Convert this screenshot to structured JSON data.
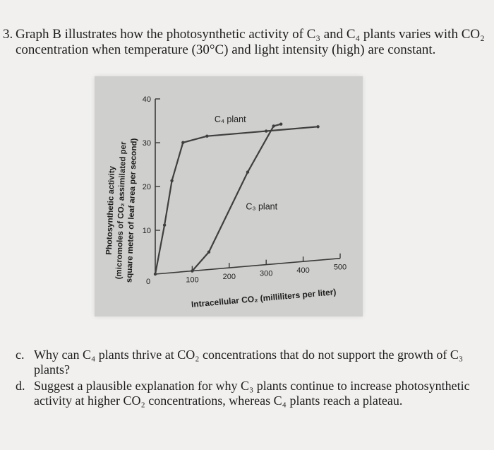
{
  "question": {
    "number": "3.",
    "line1": "Graph B illustrates how the photosynthetic activity of C₃ and C₄ plants varies with CO₂",
    "line2": "concentration when temperature (30°C) and light intensity (high) are constant."
  },
  "chart_data": {
    "type": "line",
    "ylabel_lines": [
      "Photosynthetic activity",
      "(micromoles of CO₂ assimilated per",
      "square meter of leaf area per second)"
    ],
    "xlabel": "Intracellular CO₂ (milliliters per liter)",
    "x_ticks": [
      100,
      200,
      300,
      400,
      500
    ],
    "y_ticks": [
      10,
      20,
      30,
      40
    ],
    "origin_label": "0",
    "xlim": [
      0,
      500
    ],
    "ylim": [
      0,
      40
    ],
    "grid": false,
    "series": [
      {
        "name": "C₄ plant",
        "color": "#3f3f3f",
        "points": [
          [
            0,
            0
          ],
          [
            25,
            11
          ],
          [
            45,
            21
          ],
          [
            75,
            29.5
          ],
          [
            140,
            30.5
          ],
          [
            300,
            30.5
          ],
          [
            440,
            30.5
          ]
        ]
      },
      {
        "name": "C₃ plant",
        "color": "#3f3f3f",
        "points": [
          [
            100,
            0
          ],
          [
            145,
            4
          ],
          [
            250,
            21.5
          ],
          [
            320,
            31.5
          ],
          [
            340,
            31.8
          ]
        ]
      }
    ]
  },
  "parts": [
    {
      "letter": "c.",
      "text": "Why can C₄ plants thrive at CO₂ concentrations that do not support the growth of C₃ plants?"
    },
    {
      "letter": "d.",
      "text": "Suggest a plausible explanation for why C₃ plants continue to increase photosynthetic activity at higher CO₂ concentrations, whereas C₄ plants reach a plateau."
    }
  ]
}
